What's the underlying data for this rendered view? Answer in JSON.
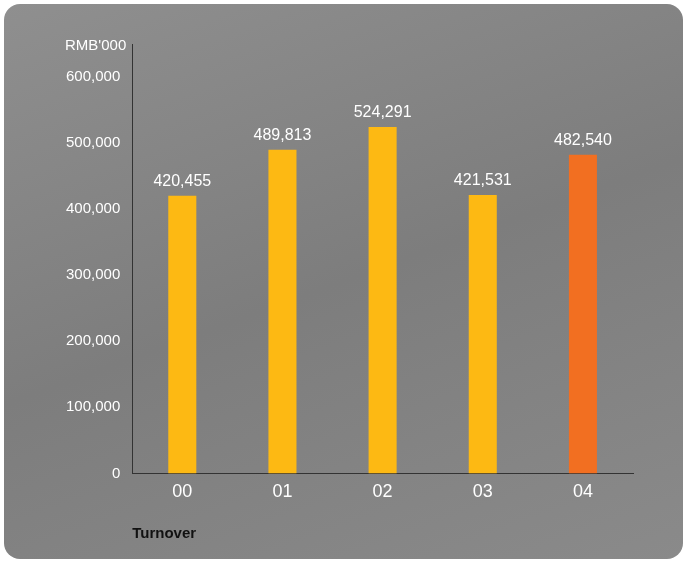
{
  "chart_data": {
    "type": "bar",
    "y_label": "RMB'000",
    "x_label": "Turnover",
    "categories": [
      "00",
      "01",
      "02",
      "03",
      "04"
    ],
    "values": [
      420455,
      489813,
      524291,
      421531,
      482540
    ],
    "value_labels": [
      "420,455",
      "489,813",
      "524,291",
      "421,531",
      "482,540"
    ],
    "colors": [
      "#fdb913",
      "#fdb913",
      "#fdb913",
      "#fdb913",
      "#f26f21"
    ],
    "ylim": [
      0,
      650000
    ],
    "yticks": [
      0,
      {
        "value": 100000,
        "label": "100,000"
      },
      {
        "value": 200000,
        "label": "200,000"
      },
      {
        "value": 300000,
        "label": "300,000"
      },
      {
        "value": 400000,
        "label": "400,000"
      },
      {
        "value": 500000,
        "label": "500,000"
      },
      {
        "value": 600000,
        "label": "600,000"
      }
    ],
    "grid": false,
    "data_labels": true
  }
}
